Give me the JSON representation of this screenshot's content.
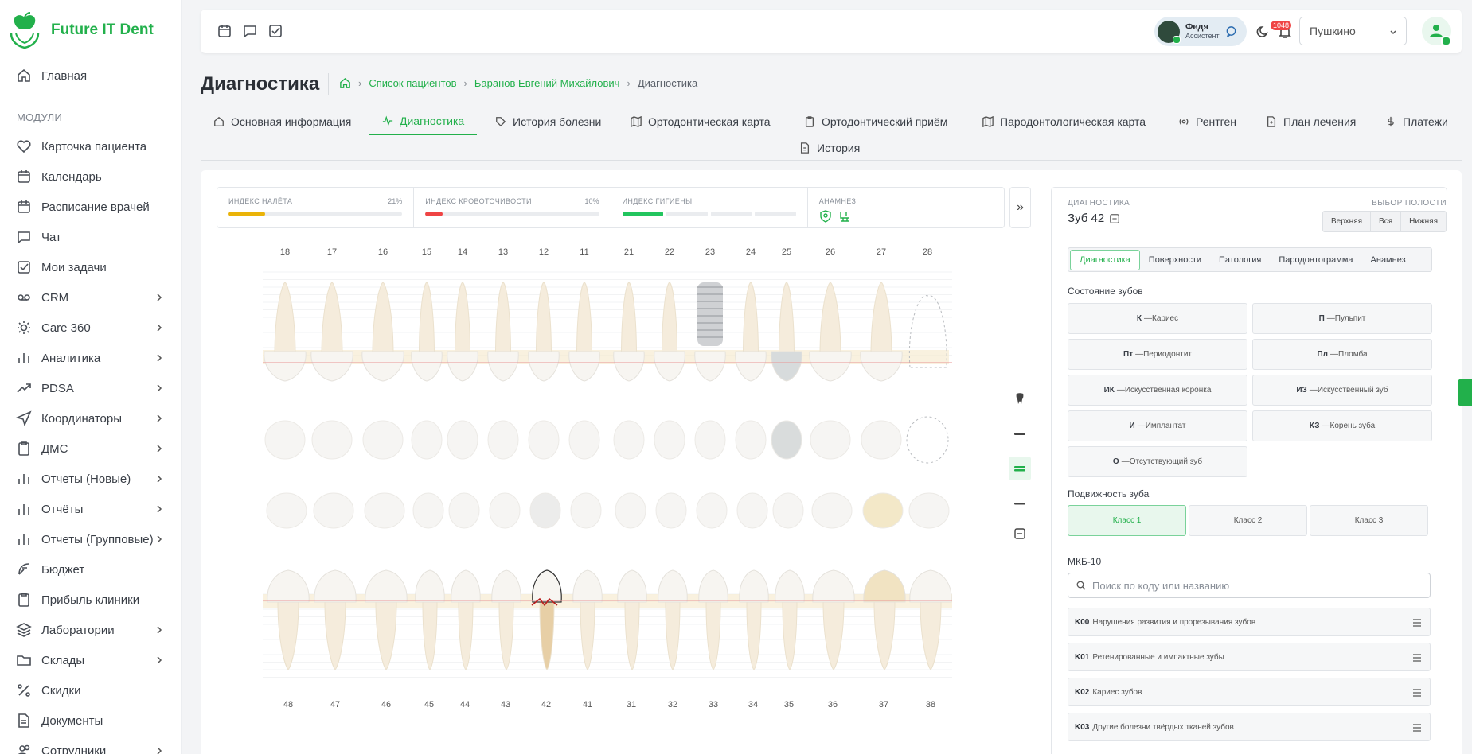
{
  "app": {
    "name": "Future IT Dent",
    "brand_color": "#22b04b"
  },
  "sidebar": {
    "home_label": "Главная",
    "section_label": "МОДУЛИ",
    "items": [
      {
        "label": "Карточка пациента",
        "icon": "heart-icon"
      },
      {
        "label": "Календарь",
        "icon": "calendar-icon"
      },
      {
        "label": "Расписание врачей",
        "icon": "calendar-icon"
      },
      {
        "label": "Чат",
        "icon": "chat-icon"
      },
      {
        "label": "Мои задачи",
        "icon": "task-check-icon"
      },
      {
        "label": "CRM",
        "icon": "crm-icon"
      },
      {
        "label": "Care 360",
        "icon": "sun-icon"
      },
      {
        "label": "Аналитика",
        "icon": "bar-chart-icon"
      },
      {
        "label": "PDSA",
        "icon": "trend-icon"
      },
      {
        "label": "Координаторы",
        "icon": "send-icon"
      },
      {
        "label": "ДМС",
        "icon": "clipboard-icon"
      },
      {
        "label": "Отчеты (Новые)",
        "icon": "bar-chart-icon"
      },
      {
        "label": "Отчёты",
        "icon": "bar-chart-icon"
      },
      {
        "label": "Отчеты (Групповые)",
        "icon": "bar-chart-icon"
      },
      {
        "label": "Бюджет",
        "icon": "feather-icon"
      },
      {
        "label": "Прибыль клиники",
        "icon": "clipboard-icon"
      },
      {
        "label": "Лаборатории",
        "icon": "layers-icon"
      },
      {
        "label": "Склады",
        "icon": "folder-icon"
      },
      {
        "label": "Скидки",
        "icon": "percent-icon"
      },
      {
        "label": "Документы",
        "icon": "document-icon"
      },
      {
        "label": "Сотрудники",
        "icon": "users-icon"
      }
    ]
  },
  "topbar": {
    "user_name": "Федя",
    "user_role": "Ассистент",
    "notifications_count": "1048",
    "clinic": "Пушкино"
  },
  "page": {
    "title": "Диагностика",
    "breadcrumb": {
      "patients": "Список пациентов",
      "patient": "Баранов Евгений Михайлович",
      "current": "Диагностика"
    }
  },
  "tabs": [
    {
      "label": "Основная информация"
    },
    {
      "label": "Диагностика"
    },
    {
      "label": "История болезни"
    },
    {
      "label": "Ортодонтическая карта"
    },
    {
      "label": "Ортодонтический приём"
    },
    {
      "label": "Пародонтологическая карта"
    },
    {
      "label": "Рентген"
    },
    {
      "label": "План лечения"
    },
    {
      "label": "Платежи"
    },
    {
      "label": "История"
    }
  ],
  "indices": {
    "plaque": {
      "label": "ИНДЕКС НАЛЁТА",
      "value": "21%",
      "fill": 0.21,
      "color": "#eab308"
    },
    "bleeding": {
      "label": "ИНДЕКС КРОВОТОЧИВОСТИ",
      "value": "10%",
      "fill": 0.1,
      "color": "#ef4444"
    },
    "hygiene": {
      "label": "ИНДЕКС ГИГИЕНЫ",
      "segments_on": 1,
      "segments_total": 4
    },
    "anamnesis": {
      "label": "АНАМНЕЗ"
    }
  },
  "teeth": {
    "upper": [
      "18",
      "17",
      "16",
      "15",
      "14",
      "13",
      "12",
      "11",
      "21",
      "22",
      "23",
      "24",
      "25",
      "26",
      "27",
      "28"
    ],
    "lower": [
      "48",
      "47",
      "46",
      "45",
      "44",
      "43",
      "42",
      "41",
      "31",
      "32",
      "33",
      "34",
      "35",
      "36",
      "37",
      "38"
    ]
  },
  "panel": {
    "label": "ДИАГНОСТИКА",
    "tooth": "Зуб 42",
    "jaw_label": "ВЫБОР ПОЛОСТИ",
    "jaw_options": [
      "Верхняя",
      "Вся",
      "Нижняя"
    ],
    "subtabs": [
      "Диагностика",
      "Поверхности",
      "Патология",
      "Пародонтограмма",
      "Анамнез"
    ],
    "states_title": "Состояние зубов",
    "states": [
      {
        "code": "К",
        "name": "Кариес"
      },
      {
        "code": "П",
        "name": "Пульпит"
      },
      {
        "code": "Пт",
        "name": "Периодонтит"
      },
      {
        "code": "Пл",
        "name": "Пломба"
      },
      {
        "code": "ИК",
        "name": "Искусственная коронка"
      },
      {
        "code": "ИЗ",
        "name": "Искусственный зуб"
      },
      {
        "code": "И",
        "name": "Имплантат"
      },
      {
        "code": "КЗ",
        "name": "Корень зуба"
      },
      {
        "code": "О",
        "name": "Отсутствующий зуб"
      }
    ],
    "mobility_title": "Подвижность зуба",
    "mobility": [
      "Класс 1",
      "Класс 2",
      "Класс 3"
    ],
    "mkb_title": "МКБ-10",
    "mkb_placeholder": "Поиск по коду или названию",
    "mkb_items": [
      {
        "code": "K00",
        "name": "Нарушения развития и прорезывания зубов"
      },
      {
        "code": "K01",
        "name": "Ретенированные и импактные зубы"
      },
      {
        "code": "K02",
        "name": "Кариес зубов"
      },
      {
        "code": "K03",
        "name": "Другие болезни твёрдых тканей зубов"
      }
    ]
  }
}
